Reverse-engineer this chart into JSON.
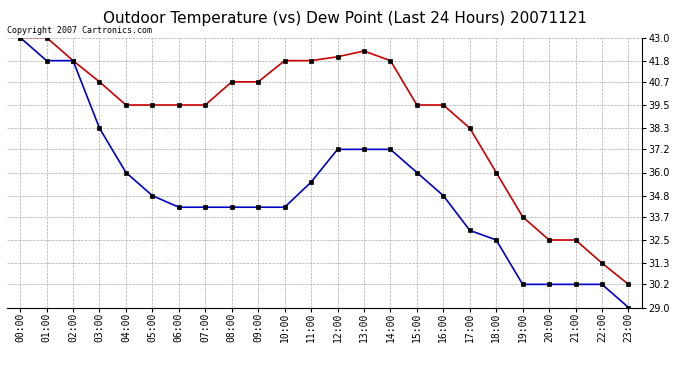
{
  "title": "Outdoor Temperature (vs) Dew Point (Last 24 Hours) 20071121",
  "copyright_text": "Copyright 2007 Cartronics.com",
  "hours": [
    "00:00",
    "01:00",
    "02:00",
    "03:00",
    "04:00",
    "05:00",
    "06:00",
    "07:00",
    "08:00",
    "09:00",
    "10:00",
    "11:00",
    "12:00",
    "13:00",
    "14:00",
    "15:00",
    "16:00",
    "17:00",
    "18:00",
    "19:00",
    "20:00",
    "21:00",
    "22:00",
    "23:00"
  ],
  "temp": [
    43.0,
    43.0,
    41.8,
    40.7,
    39.5,
    39.5,
    39.5,
    39.5,
    40.7,
    40.7,
    41.8,
    41.8,
    42.0,
    42.3,
    41.8,
    39.5,
    39.5,
    38.3,
    36.0,
    33.7,
    32.5,
    32.5,
    31.3,
    30.2
  ],
  "dew": [
    43.0,
    41.8,
    41.8,
    38.3,
    36.0,
    34.8,
    34.2,
    34.2,
    34.2,
    34.2,
    34.2,
    35.5,
    37.2,
    37.2,
    37.2,
    36.0,
    34.8,
    33.0,
    32.5,
    30.2,
    30.2,
    30.2,
    30.2,
    29.0
  ],
  "temp_color": "#cc0000",
  "dew_color": "#0000cc",
  "bg_color": "#ffffff",
  "grid_color": "#aaaaaa",
  "ylim_min": 29.0,
  "ylim_max": 43.0,
  "yticks": [
    29.0,
    30.2,
    31.3,
    32.5,
    33.7,
    34.8,
    36.0,
    37.2,
    38.3,
    39.5,
    40.7,
    41.8,
    43.0
  ],
  "title_fontsize": 11,
  "copyright_fontsize": 6,
  "tick_fontsize": 7,
  "marker_size": 3,
  "linewidth": 1.2
}
